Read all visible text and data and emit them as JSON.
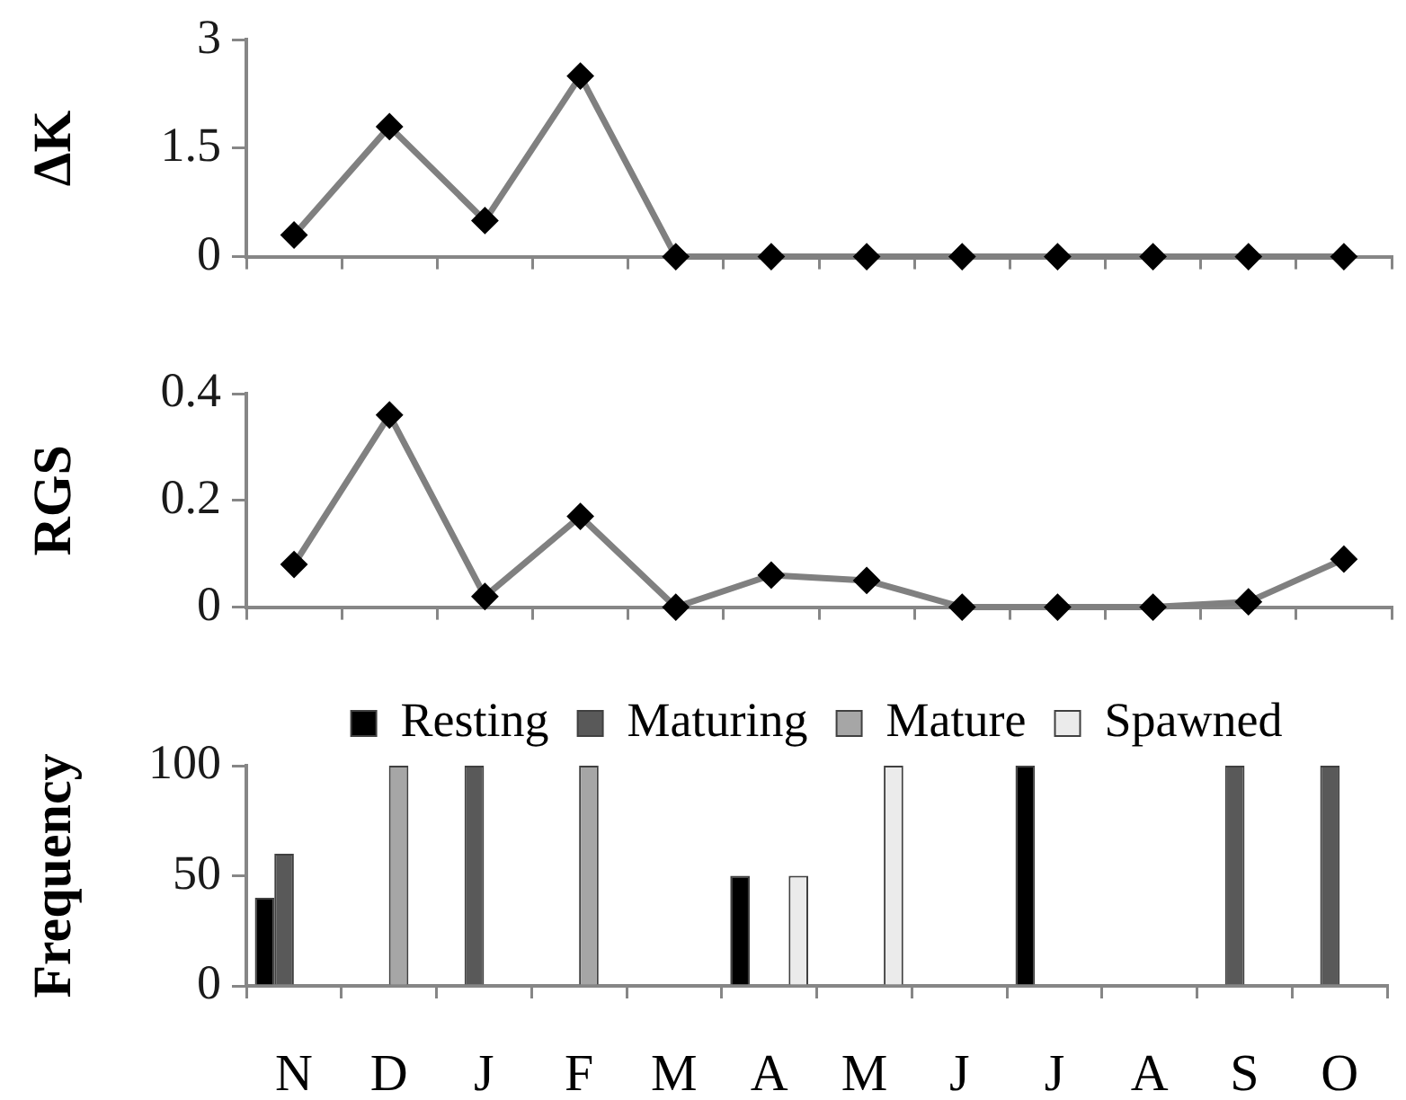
{
  "chart_data": [
    {
      "type": "line",
      "ylabel": "ΔK",
      "categories": [
        null,
        null,
        null,
        null,
        null,
        null,
        null,
        null,
        null,
        null,
        null,
        null
      ],
      "values": [
        0.3,
        1.8,
        0.5,
        2.5,
        0,
        0,
        0,
        0,
        0,
        0,
        0,
        0
      ],
      "color": "#808080",
      "marker": "diamond",
      "ylim": [
        0,
        3
      ],
      "yticks": [
        0,
        1.5,
        3
      ]
    },
    {
      "type": "line",
      "ylabel": "RGS",
      "categories": [
        null,
        null,
        null,
        null,
        null,
        null,
        null,
        null,
        null,
        null,
        null,
        null
      ],
      "values": [
        0.08,
        0.36,
        0.02,
        0.17,
        0,
        0.06,
        0.05,
        0,
        0,
        0,
        0.01,
        0.09
      ],
      "color": "#808080",
      "marker": "diamond",
      "ylim": [
        0,
        0.4
      ],
      "yticks": [
        0,
        0.2,
        0.4
      ]
    },
    {
      "type": "bar",
      "ylabel": "Frequency",
      "categories": [
        "N",
        "D",
        "J",
        "F",
        "M",
        "A",
        "M",
        "J",
        "J",
        "A",
        "S",
        "O"
      ],
      "series": [
        {
          "name": "Resting",
          "color": "#000000",
          "values": [
            40,
            0,
            0,
            0,
            0,
            50,
            0,
            0,
            100,
            0,
            0,
            0
          ]
        },
        {
          "name": "Maturing",
          "color": "#595959",
          "values": [
            60,
            0,
            100,
            0,
            0,
            0,
            0,
            0,
            0,
            0,
            100,
            100
          ]
        },
        {
          "name": "Mature",
          "color": "#a6a6a6",
          "values": [
            0,
            100,
            0,
            100,
            0,
            0,
            0,
            0,
            0,
            0,
            0,
            0
          ]
        },
        {
          "name": "Spawned",
          "color": "#ebebeb",
          "values": [
            0,
            0,
            0,
            0,
            0,
            50,
            100,
            0,
            0,
            0,
            0,
            0
          ]
        }
      ],
      "ylim": [
        0,
        100
      ],
      "yticks": [
        0,
        50,
        100
      ],
      "legend": "top"
    }
  ]
}
